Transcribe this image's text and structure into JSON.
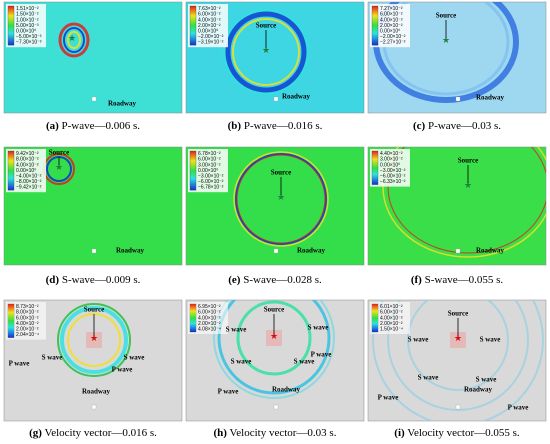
{
  "panels": [
    {
      "label": "(a)",
      "caption": "P-wave—0.006 s.",
      "legend": [
        "1.51×10⁻²",
        "1.50×10⁻²",
        "1.00×10⁻²",
        "5.00×10⁻³",
        "0.00×10⁰",
        "−5.00×10⁻³",
        "−7.30×10⁻³"
      ],
      "annotations": [
        "Roadway"
      ]
    },
    {
      "label": "(b)",
      "caption": "P-wave—0.016 s.",
      "legend": [
        "7.63×10⁻²",
        "6.00×10⁻²",
        "4.00×10⁻²",
        "2.00×10⁻²",
        "0.00×10⁰",
        "−2.00×10⁻²",
        "−3.19×10⁻²"
      ],
      "annotations": [
        "Source",
        "Roadway"
      ]
    },
    {
      "label": "(c)",
      "caption": "P-wave—0.03 s.",
      "legend": [
        "7.27×10⁻²",
        "6.00×10⁻²",
        "4.00×10⁻²",
        "2.00×10⁻²",
        "0.00×10⁰",
        "−2.00×10⁻²",
        "−2.27×10⁻²"
      ],
      "annotations": [
        "Source",
        "Roadway"
      ]
    },
    {
      "label": "(d)",
      "caption": "S-wave—0.009 s.",
      "legend": [
        "9.42×10⁻²",
        "8.00×10⁻²",
        "4.00×10⁻²",
        "0.00×10⁰",
        "−4.00×10⁻²",
        "−8.00×10⁻²",
        "−9.42×10⁻²"
      ],
      "annotations": [
        "Source",
        "Roadway"
      ]
    },
    {
      "label": "(e)",
      "caption": "S-wave—0.028 s.",
      "legend": [
        "6.78×10⁻²",
        "6.00×10⁻²",
        "3.00×10⁻²",
        "0.00×10⁰",
        "−3.00×10⁻²",
        "−6.00×10⁻²",
        "−6.78×10⁻²"
      ],
      "annotations": [
        "Source",
        "Roadway"
      ]
    },
    {
      "label": "(f)",
      "caption": "S-wave—0.055 s.",
      "legend": [
        "4.40×10⁻²",
        "3.00×10⁻²",
        "0.00×10⁰",
        "−3.00×10⁻²",
        "−6.00×10⁻²",
        "−6.33×10⁻²"
      ],
      "annotations": [
        "Source",
        "Roadway"
      ]
    },
    {
      "label": "(g)",
      "caption": "Velocity vector—0.016 s.",
      "legend": [
        "8.73×10⁻²",
        "8.00×10⁻²",
        "6.00×10⁻²",
        "4.00×10⁻²",
        "2.00×10⁻²",
        "2.04×10⁻⁴"
      ],
      "annotations": [
        "Source",
        "P wave",
        "S wave",
        "S wave",
        "P wave",
        "Roadway"
      ]
    },
    {
      "label": "(h)",
      "caption": "Velocity vector—0.03 s.",
      "legend": [
        "6.95×10⁻²",
        "6.00×10⁻²",
        "4.00×10⁻²",
        "2.00×10⁻²",
        "4.08×10⁻⁴"
      ],
      "annotations": [
        "Source",
        "S wave",
        "S wave",
        "P wave",
        "S wave",
        "S wave",
        "P wave",
        "Roadway"
      ]
    },
    {
      "label": "(i)",
      "caption": "Velocity vector—0.055 s.",
      "legend": [
        "6.01×10⁻²",
        "6.00×10⁻²",
        "4.00×10⁻²",
        "2.00×10⁻²",
        "1.50×10⁻⁴"
      ],
      "annotations": [
        "Source",
        "S wave",
        "S wave",
        "S wave",
        "S wave",
        "Roadway",
        "P wave",
        "P wave"
      ]
    }
  ]
}
